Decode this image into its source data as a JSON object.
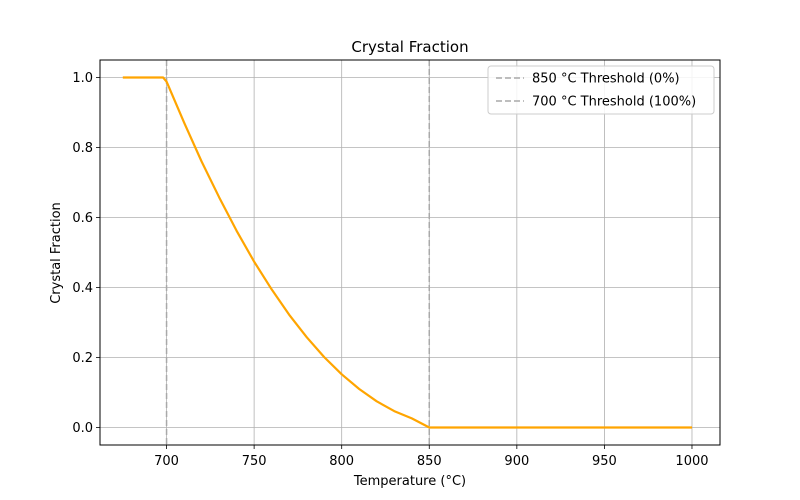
{
  "chart_data": {
    "type": "line",
    "title": "Crystal Fraction",
    "xlabel": "Temperature (°C)",
    "ylabel": "Crystal Fraction",
    "xlim": [
      662,
      1016
    ],
    "ylim": [
      -0.05,
      1.05
    ],
    "xticks": [
      700,
      750,
      800,
      850,
      900,
      950,
      1000
    ],
    "yticks": [
      0.0,
      0.2,
      0.4,
      0.6,
      0.8,
      1.0
    ],
    "xtick_labels": [
      "700",
      "750",
      "800",
      "850",
      "900",
      "950",
      "1000"
    ],
    "ytick_labels": [
      "0.0",
      "0.2",
      "0.4",
      "0.6",
      "0.8",
      "1.0"
    ],
    "grid": true,
    "legend_position": "top-right",
    "series": [
      {
        "color": "#ffa500",
        "x": [
          675,
          690,
          698,
          700,
          710,
          720,
          730,
          740,
          750,
          760,
          770,
          780,
          790,
          800,
          810,
          820,
          830,
          840,
          850,
          875,
          900,
          925,
          950,
          975,
          1000
        ],
        "y": [
          1.0,
          1.0,
          1.0,
          0.988,
          0.871,
          0.76,
          0.658,
          0.562,
          0.474,
          0.395,
          0.322,
          0.258,
          0.201,
          0.152,
          0.11,
          0.075,
          0.047,
          0.026,
          0.0,
          0.0,
          0.0,
          0.0,
          0.0,
          0.0,
          0.0
        ]
      }
    ],
    "thresholds": [
      {
        "x": 850,
        "label": "850 °C Threshold (0%)",
        "color": "#a9a9a9",
        "style": "dashed"
      },
      {
        "x": 700,
        "label": "700 °C Threshold (100%)",
        "color": "#a9a9a9",
        "style": "dashed"
      }
    ]
  }
}
